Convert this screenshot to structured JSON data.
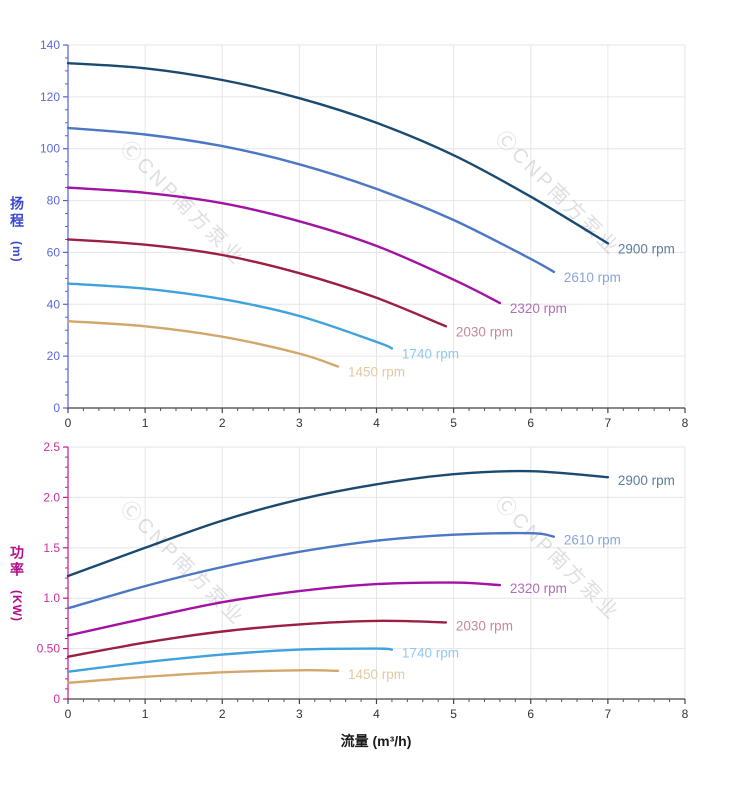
{
  "page": {
    "background": "#ffffff"
  },
  "watermark": {
    "text": "ⒸCNP南方泵业",
    "color": "rgba(140,140,155,0.28)"
  },
  "chart_data": [
    {
      "id": "head",
      "type": "line",
      "title": "",
      "ylabel": "扬程",
      "ylabel_unit": "(m)",
      "xlabel": "",
      "axis_color": "#5560d8",
      "tick_label_color": "#5b68df",
      "x_tick_label_color": "#333333",
      "grid_color": "#e6e6e9",
      "grid": true,
      "legend_position": "end-of-line",
      "label_offset": [
        10,
        10
      ],
      "x_axis": {
        "min": 0,
        "max": 8,
        "major_step": 1,
        "minor_step": 0.2,
        "tick_labels": [
          "0",
          "1",
          "2",
          "3",
          "4",
          "5",
          "6",
          "7",
          "8"
        ]
      },
      "y_axis": {
        "min": 0,
        "max": 140,
        "major_step": 20,
        "minor_step": 5,
        "tick_labels": [
          "0",
          "20",
          "40",
          "60",
          "80",
          "100",
          "120",
          "140"
        ]
      },
      "series": [
        {
          "name": "2900 rpm",
          "color": "#1b4a71",
          "label_color": "#5d7d9b",
          "points": [
            [
              0,
              133
            ],
            [
              1,
              131
            ],
            [
              2,
              126.5
            ],
            [
              3,
              119.5
            ],
            [
              4,
              110
            ],
            [
              5,
              97.5
            ],
            [
              6,
              81.5
            ],
            [
              7,
              63.5
            ]
          ]
        },
        {
          "name": "2610 rpm",
          "color": "#4c77c5",
          "label_color": "#8ba5d9",
          "points": [
            [
              0,
              108
            ],
            [
              1,
              105.5
            ],
            [
              2,
              101
            ],
            [
              3,
              94
            ],
            [
              4,
              84.5
            ],
            [
              5,
              72.5
            ],
            [
              6,
              57.5
            ],
            [
              6.3,
              52.5
            ]
          ]
        },
        {
          "name": "2320 rpm",
          "color": "#a213a5",
          "label_color": "#b26cb9",
          "points": [
            [
              0,
              85
            ],
            [
              1,
              83
            ],
            [
              2,
              79
            ],
            [
              3,
              72
            ],
            [
              4,
              62.5
            ],
            [
              5,
              49.5
            ],
            [
              5.6,
              40.5
            ]
          ]
        },
        {
          "name": "2030 rpm",
          "color": "#9b1f41",
          "label_color": "#c4899b",
          "points": [
            [
              0,
              65
            ],
            [
              1,
              63
            ],
            [
              2,
              59
            ],
            [
              3,
              52
            ],
            [
              4,
              42.5
            ],
            [
              4.9,
              31.5
            ]
          ]
        },
        {
          "name": "1740 rpm",
          "color": "#3da2de",
          "label_color": "#90c8ee",
          "points": [
            [
              0,
              48
            ],
            [
              1,
              46
            ],
            [
              2,
              42
            ],
            [
              3,
              35.5
            ],
            [
              4,
              25.5
            ],
            [
              4.2,
              23
            ]
          ]
        },
        {
          "name": "1450 rpm",
          "color": "#d2a76c",
          "label_color": "#e3c9a2",
          "points": [
            [
              0,
              33.5
            ],
            [
              1,
              31.5
            ],
            [
              2,
              27.5
            ],
            [
              3,
              21
            ],
            [
              3.5,
              16
            ]
          ]
        }
      ]
    },
    {
      "id": "power",
      "type": "line",
      "title": "",
      "ylabel": "功率",
      "ylabel_unit": "(KW)",
      "xlabel": "流量 (m³/h)",
      "axis_color": "#c8188e",
      "tick_label_color": "#cc2f9c",
      "x_tick_label_color": "#333333",
      "grid_color": "#e6e6e9",
      "grid": true,
      "legend_position": "end-of-line",
      "label_offset": [
        10,
        8
      ],
      "x_axis": {
        "min": 0,
        "max": 8,
        "major_step": 1,
        "minor_step": 0.2,
        "tick_labels": [
          "0",
          "1",
          "2",
          "3",
          "4",
          "5",
          "6",
          "7",
          "8"
        ]
      },
      "y_axis": {
        "min": 0,
        "max": 2.5,
        "major_step": 0.5,
        "minor_step": 0.1,
        "tick_labels": [
          "0",
          "0.50",
          "1.0",
          "1.5",
          "2.0",
          "2.5"
        ]
      },
      "series": [
        {
          "name": "2900 rpm",
          "color": "#1b4a71",
          "label_color": "#5d7d9b",
          "points": [
            [
              0,
              1.22
            ],
            [
              1,
              1.5
            ],
            [
              2,
              1.77
            ],
            [
              3,
              1.98
            ],
            [
              4,
              2.13
            ],
            [
              5,
              2.23
            ],
            [
              6,
              2.26
            ],
            [
              7,
              2.2
            ]
          ]
        },
        {
          "name": "2610 rpm",
          "color": "#4c77c5",
          "label_color": "#8ba5d9",
          "points": [
            [
              0,
              0.9
            ],
            [
              1,
              1.12
            ],
            [
              2,
              1.31
            ],
            [
              3,
              1.46
            ],
            [
              4,
              1.57
            ],
            [
              5,
              1.63
            ],
            [
              6,
              1.645
            ],
            [
              6.3,
              1.61
            ]
          ]
        },
        {
          "name": "2320 rpm",
          "color": "#a213a5",
          "label_color": "#b26cb9",
          "points": [
            [
              0,
              0.63
            ],
            [
              1,
              0.8
            ],
            [
              2,
              0.96
            ],
            [
              3,
              1.07
            ],
            [
              4,
              1.14
            ],
            [
              5,
              1.155
            ],
            [
              5.6,
              1.13
            ]
          ]
        },
        {
          "name": "2030 rpm",
          "color": "#9b1f41",
          "label_color": "#c4899b",
          "points": [
            [
              0,
              0.42
            ],
            [
              1,
              0.56
            ],
            [
              2,
              0.67
            ],
            [
              3,
              0.74
            ],
            [
              4,
              0.775
            ],
            [
              4.9,
              0.76
            ]
          ]
        },
        {
          "name": "1740 rpm",
          "color": "#3da2de",
          "label_color": "#90c8ee",
          "points": [
            [
              0,
              0.27
            ],
            [
              1,
              0.365
            ],
            [
              2,
              0.44
            ],
            [
              3,
              0.49
            ],
            [
              4,
              0.5
            ],
            [
              4.2,
              0.49
            ]
          ]
        },
        {
          "name": "1450 rpm",
          "color": "#d2a76c",
          "label_color": "#e3c9a2",
          "points": [
            [
              0,
              0.16
            ],
            [
              1,
              0.22
            ],
            [
              2,
              0.265
            ],
            [
              3,
              0.285
            ],
            [
              3.5,
              0.28
            ]
          ]
        }
      ]
    }
  ]
}
